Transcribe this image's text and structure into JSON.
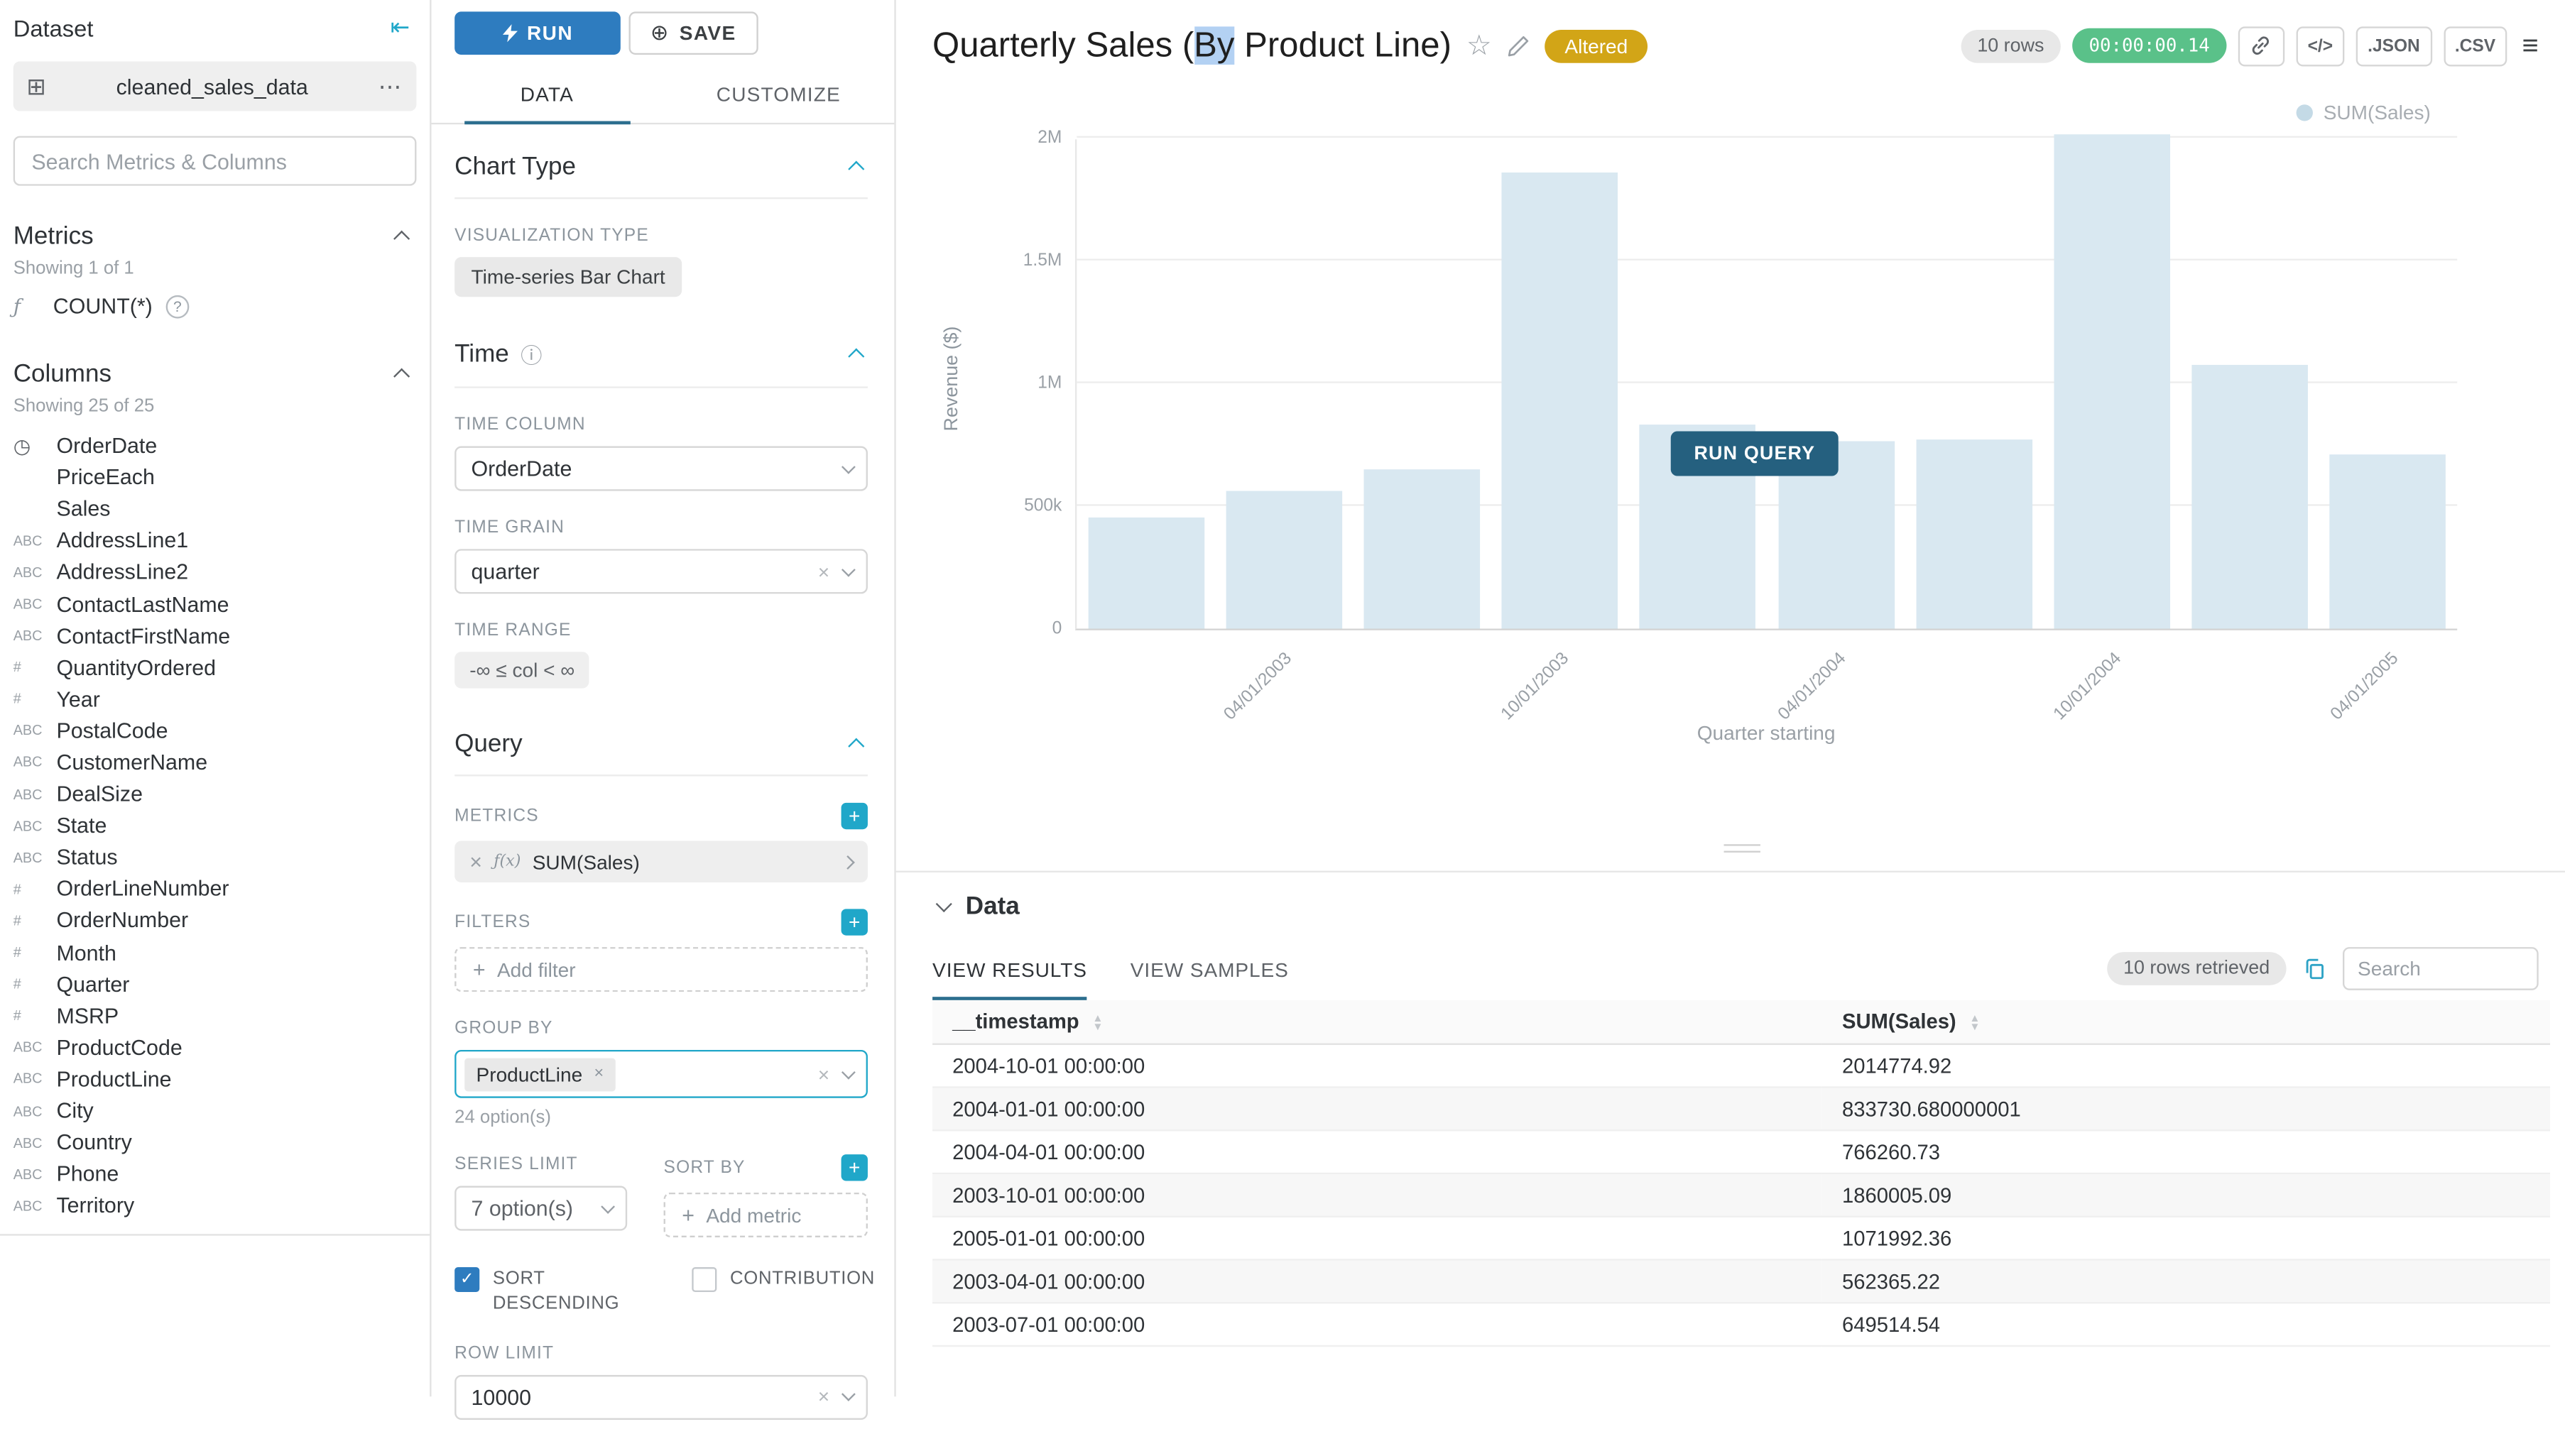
{
  "colors": {
    "primary": "#20a7c9",
    "run_button": "#2e7cbf",
    "run_query_button": "#25607f",
    "timer_badge": "#5ac189",
    "altered_badge": "#d2a517",
    "bar_fill": "#d9e8f1",
    "selection_highlight": "#b3d1f3",
    "tab_underline": "#2c6e8e"
  },
  "icons": {
    "collapse_panel": "⇤",
    "dataset_grid": "⊞",
    "more": "⋯",
    "function": "ƒ",
    "function_x": "ƒ(x)",
    "help": "?",
    "time_column": "◷",
    "text_column": "ABC",
    "numeric_column": "#",
    "info": "ⓘ",
    "plus": "+",
    "plus_circle": "⊕",
    "close_x": "×",
    "star": "☆",
    "menu": "≡",
    "code": "</>",
    "check": "✓",
    "infinity_range": "-∞ ≤ col < ∞"
  },
  "dataset_panel": {
    "title": "Dataset",
    "dataset_name": "cleaned_sales_data",
    "search_placeholder": "Search Metrics & Columns",
    "metrics_section": {
      "title": "Metrics",
      "showing": "Showing 1 of 1",
      "items": [
        {
          "label": "COUNT(*)"
        }
      ]
    },
    "columns_section": {
      "title": "Columns",
      "showing": "Showing 25 of 25",
      "items": [
        {
          "type": "time",
          "label": "OrderDate"
        },
        {
          "type": "none",
          "label": "PriceEach"
        },
        {
          "type": "none",
          "label": "Sales"
        },
        {
          "type": "text",
          "label": "AddressLine1"
        },
        {
          "type": "text",
          "label": "AddressLine2"
        },
        {
          "type": "text",
          "label": "ContactLastName"
        },
        {
          "type": "text",
          "label": "ContactFirstName"
        },
        {
          "type": "num",
          "label": "QuantityOrdered"
        },
        {
          "type": "num",
          "label": "Year"
        },
        {
          "type": "text",
          "label": "PostalCode"
        },
        {
          "type": "text",
          "label": "CustomerName"
        },
        {
          "type": "text",
          "label": "DealSize"
        },
        {
          "type": "text",
          "label": "State"
        },
        {
          "type": "text",
          "label": "Status"
        },
        {
          "type": "num",
          "label": "OrderLineNumber"
        },
        {
          "type": "num",
          "label": "OrderNumber"
        },
        {
          "type": "num",
          "label": "Month"
        },
        {
          "type": "num",
          "label": "Quarter"
        },
        {
          "type": "num",
          "label": "MSRP"
        },
        {
          "type": "text",
          "label": "ProductCode"
        },
        {
          "type": "text",
          "label": "ProductLine"
        },
        {
          "type": "text",
          "label": "City"
        },
        {
          "type": "text",
          "label": "Country"
        },
        {
          "type": "text",
          "label": "Phone"
        },
        {
          "type": "text",
          "label": "Territory"
        }
      ]
    }
  },
  "control_panel": {
    "run_label": "RUN",
    "save_label": "SAVE",
    "tabs": [
      "DATA",
      "CUSTOMIZE"
    ],
    "chart_type": {
      "title": "Chart Type",
      "viz_type_label": "VISUALIZATION TYPE",
      "viz_type": "Time-series Bar Chart"
    },
    "time": {
      "title": "Time",
      "time_column_label": "TIME COLUMN",
      "time_column": "OrderDate",
      "time_grain_label": "TIME GRAIN",
      "time_grain": "quarter",
      "time_range_label": "TIME RANGE",
      "time_range": "-∞ ≤ col < ∞"
    },
    "query": {
      "title": "Query",
      "metrics_label": "METRICS",
      "metric": "SUM(Sales)",
      "filters_label": "FILTERS",
      "add_filter": "Add filter",
      "group_by_label": "GROUP BY",
      "group_by_value": "ProductLine",
      "group_by_options": "24 option(s)",
      "series_limit_label": "SERIES LIMIT",
      "series_limit": "7 option(s)",
      "sort_by_label": "SORT BY",
      "add_metric": "Add metric",
      "sort_descending_label": "SORT DESCENDING",
      "contribution_label": "CONTRIBUTION",
      "row_limit_label": "ROW LIMIT",
      "row_limit": "10000"
    }
  },
  "header": {
    "title_prefix": "Quarterly Sales (",
    "title_highlight": "By",
    "title_suffix": " Product Line)",
    "altered_badge": "Altered",
    "rows_badge": "10 rows",
    "timer": "00:00:00.14",
    "json_label": ".JSON",
    "csv_label": ".CSV"
  },
  "chart": {
    "run_query_label": "RUN QUERY"
  },
  "chart_data": {
    "type": "bar",
    "title": "Quarterly Sales (By Product Line)",
    "xlabel": "Quarter starting",
    "ylabel": "Revenue ($)",
    "legend": [
      "SUM(Sales)"
    ],
    "legend_position": "top-right",
    "grid": true,
    "x": [
      "2003-01-01",
      "2003-04-01",
      "2003-07-01",
      "2003-10-01",
      "2004-01-01",
      "2004-04-01",
      "2004-07-01",
      "2004-10-01",
      "2005-01-01",
      "2005-04-01"
    ],
    "values": [
      450000,
      562365.22,
      649514.54,
      1860005.09,
      833730.68,
      766260.73,
      770000,
      2014774.92,
      1071992.36,
      710000
    ],
    "x_tick_labels": [
      "04/01/2003",
      "10/01/2003",
      "04/01/2004",
      "10/01/2004",
      "04/01/2005"
    ],
    "x_tick_indices": [
      1,
      3,
      5,
      7,
      9
    ],
    "y_ticks": [
      "0",
      "500k",
      "1M",
      "1.5M",
      "2M"
    ],
    "ylim": [
      0,
      2000000
    ]
  },
  "data_panel": {
    "title": "Data",
    "tabs": [
      "VIEW RESULTS",
      "VIEW SAMPLES"
    ],
    "rows_retrieved": "10 rows retrieved",
    "search_placeholder": "Search",
    "table": {
      "columns": [
        "__timestamp",
        "SUM(Sales)"
      ],
      "rows": [
        [
          "2004-10-01 00:00:00",
          "2014774.92"
        ],
        [
          "2004-01-01 00:00:00",
          "833730.680000001"
        ],
        [
          "2004-04-01 00:00:00",
          "766260.73"
        ],
        [
          "2003-10-01 00:00:00",
          "1860005.09"
        ],
        [
          "2005-01-01 00:00:00",
          "1071992.36"
        ],
        [
          "2003-04-01 00:00:00",
          "562365.22"
        ],
        [
          "2003-07-01 00:00:00",
          "649514.54"
        ]
      ]
    }
  }
}
